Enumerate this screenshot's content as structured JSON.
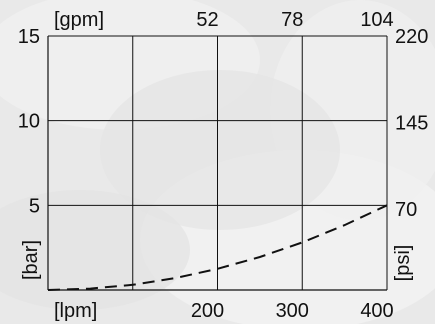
{
  "chart_data": {
    "type": "line",
    "title": "",
    "axes": {
      "left": {
        "unit": "[bar]",
        "ticks": [
          "5",
          "10",
          "15"
        ],
        "tick_values": [
          5,
          10,
          15
        ],
        "range": [
          0,
          15
        ]
      },
      "right": {
        "unit": "[psi]",
        "ticks": [
          "70",
          "145",
          "220"
        ],
        "tick_values": [
          70,
          145,
          220
        ],
        "range": [
          0,
          220
        ]
      },
      "bottom": {
        "unit": "[lpm]",
        "ticks": [
          "200",
          "300",
          "400"
        ],
        "tick_values": [
          200,
          300,
          400
        ],
        "range": [
          0,
          400
        ]
      },
      "top": {
        "unit": "[gpm]",
        "ticks": [
          "52",
          "78",
          "104"
        ],
        "tick_values": [
          52,
          78,
          104
        ],
        "range": [
          0,
          104
        ]
      }
    },
    "grid": true,
    "series": [
      {
        "style": "dashed",
        "color": "#111111",
        "x": [
          0,
          50,
          100,
          150,
          200,
          250,
          300,
          350,
          400
        ],
        "y": [
          0,
          0.08,
          0.31,
          0.7,
          1.25,
          1.95,
          2.81,
          3.83,
          5.0
        ]
      }
    ]
  },
  "colors": {
    "background": "#e9e9e9",
    "lines": "#111111"
  }
}
